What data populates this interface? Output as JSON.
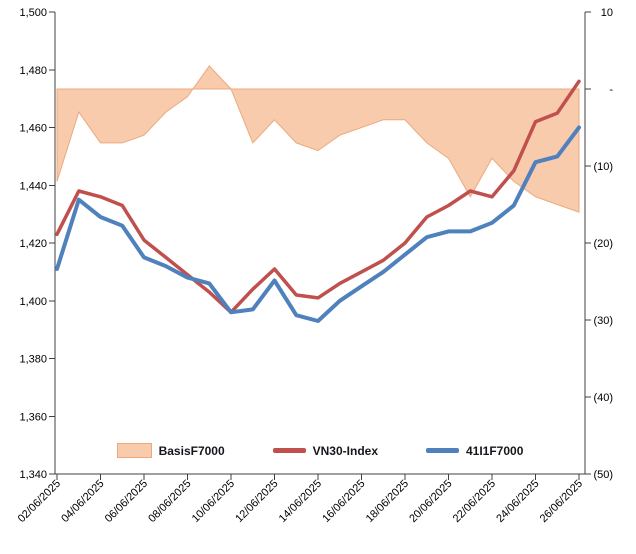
{
  "chart_data": {
    "type": "combo",
    "title": "",
    "categories": [
      "02/06/2025",
      "03/06/2025",
      "04/06/2025",
      "05/06/2025",
      "06/06/2025",
      "07/06/2025",
      "08/06/2025",
      "09/06/2025",
      "10/06/2025",
      "11/06/2025",
      "12/06/2025",
      "13/06/2025",
      "14/06/2025",
      "15/06/2025",
      "16/06/2025",
      "17/06/2025",
      "18/06/2025",
      "19/06/2025",
      "20/06/2025",
      "21/06/2025",
      "22/06/2025",
      "23/06/2025",
      "24/06/2025",
      "25/06/2025",
      "26/06/2025"
    ],
    "x_tick_labels": [
      "02/06/2025",
      "04/06/2025",
      "06/06/2025",
      "08/06/2025",
      "10/06/2025",
      "12/06/2025",
      "14/06/2025",
      "16/06/2025",
      "18/06/2025",
      "20/06/2025",
      "22/06/2025",
      "24/06/2025",
      "26/06/2025"
    ],
    "left_axis": {
      "min": 1340,
      "max": 1500,
      "step": 20,
      "tick_labels": [
        "1,500",
        "1,480",
        "1,460",
        "1,440",
        "1,420",
        "1,400",
        "1,380",
        "1,360",
        "1,340"
      ]
    },
    "right_axis": {
      "min": -50,
      "max": 10,
      "step": 10,
      "tick_labels": [
        "10",
        "-",
        "(10)",
        "(20)",
        "(30)",
        "(40)",
        "(50)"
      ]
    },
    "grid": "off",
    "legend_position": "bottom",
    "plot_bg": "#FFFFFF",
    "series": [
      {
        "name": "BasisF7000",
        "type": "area",
        "axis": "right",
        "fill": "#F8CBAD",
        "stroke": "#ECA97C",
        "values": [
          -12,
          -3,
          -7,
          -7,
          -6,
          -3,
          -1,
          3,
          0,
          -7,
          -4,
          -7,
          -8,
          -6,
          -5,
          -4,
          -4,
          -7,
          -9,
          -14,
          -9,
          -12,
          -14,
          -15,
          -16
        ]
      },
      {
        "name": "VN30-Index",
        "type": "line",
        "axis": "left",
        "color": "#C0504D",
        "width": 3.5,
        "values": [
          1423,
          1438,
          1436,
          1433,
          1421,
          1415,
          1409,
          1403,
          1396,
          1404,
          1411,
          1402,
          1401,
          1406,
          1410,
          1414,
          1420,
          1429,
          1433,
          1438,
          1436,
          1445,
          1462,
          1465,
          1476
        ]
      },
      {
        "name": "41I1F7000",
        "type": "line",
        "axis": "left",
        "color": "#4F81BD",
        "width": 4,
        "values": [
          1411,
          1435,
          1429,
          1426,
          1415,
          1412,
          1408,
          1406,
          1396,
          1397,
          1407,
          1395,
          1393,
          1400,
          1405,
          1410,
          1416,
          1422,
          1424,
          1424,
          1427,
          1433,
          1448,
          1450,
          1460
        ]
      }
    ]
  }
}
